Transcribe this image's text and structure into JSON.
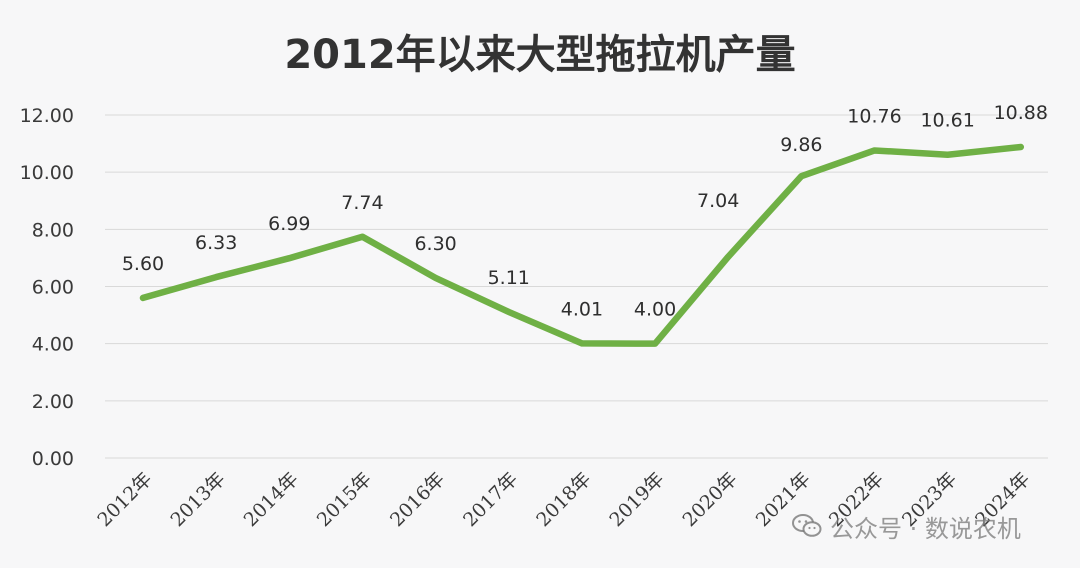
{
  "chart_data": {
    "type": "line",
    "title": "2012年以来大型拖拉机产量",
    "categories": [
      "2012年",
      "2013年",
      "2014年",
      "2015年",
      "2016年",
      "2017年",
      "2018年",
      "2019年",
      "2020年",
      "2021年",
      "2022年",
      "2023年",
      "2024年"
    ],
    "series": [
      {
        "values": [
          5.6,
          6.33,
          6.99,
          7.74,
          6.3,
          5.11,
          4.01,
          4.0,
          7.04,
          9.86,
          10.76,
          10.61,
          10.88
        ]
      }
    ],
    "data_labels": [
      "5.60",
      "6.33",
      "6.99",
      "7.74",
      "6.30",
      "5.11",
      "4.01",
      "4.00",
      "7.04",
      "9.86",
      "10.76",
      "10.61",
      "10.88"
    ],
    "y_ticks": [
      "0.00",
      "2.00",
      "4.00",
      "6.00",
      "8.00",
      "10.00",
      "12.00"
    ],
    "ylim": [
      0,
      12
    ],
    "grid": true,
    "line_color": "#6fb045"
  },
  "watermark": {
    "text": "公众号 · 数说农机",
    "icon": "wechat-icon"
  }
}
